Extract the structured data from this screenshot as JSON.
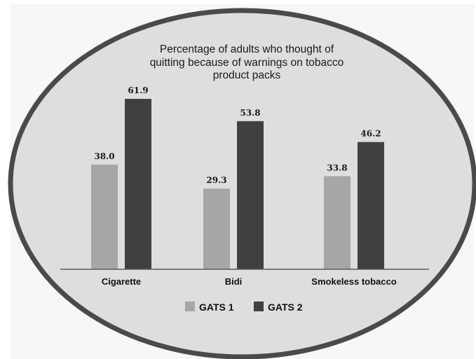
{
  "chart_data": {
    "type": "bar",
    "title_lines": [
      "Percentage of adults who thought of",
      "quitting because of warnings on tobacco",
      "product packs"
    ],
    "categories": [
      "Cigarette",
      "Bidi",
      "Smokeless tobacco"
    ],
    "series": [
      {
        "name": "GATS 1",
        "values": [
          38.0,
          29.3,
          33.8
        ],
        "color": "#a6a6a6"
      },
      {
        "name": "GATS 2",
        "values": [
          61.9,
          53.8,
          46.2
        ],
        "color": "#404040"
      }
    ],
    "ylim": [
      0,
      70
    ],
    "grid": false,
    "legend_position": "bottom-center"
  },
  "colors": {
    "frame_bg": "#f7f7f7",
    "ellipse_fill": "#dedede",
    "ellipse_stroke": "#4a4a4a"
  }
}
